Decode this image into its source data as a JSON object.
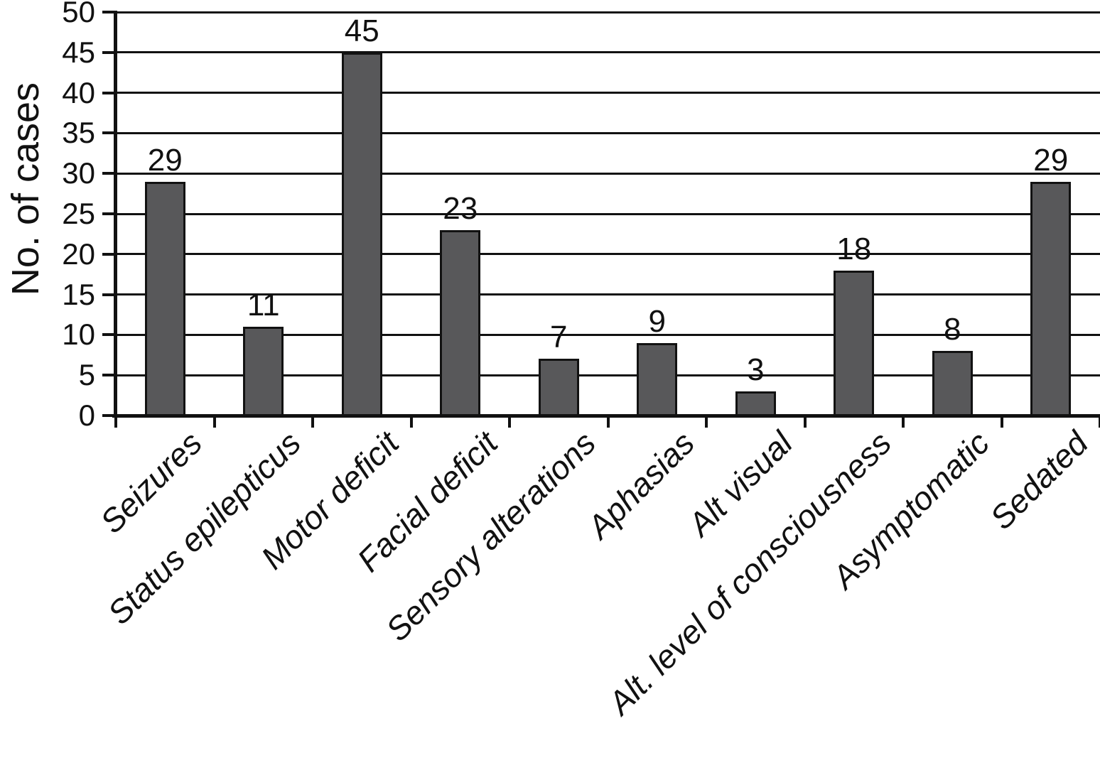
{
  "chart_data": {
    "type": "bar",
    "title": "",
    "xlabel": "",
    "ylabel": "No. of cases",
    "categories": [
      "Seizures",
      "Status epilepticus",
      "Motor deficit",
      "Facial deficit",
      "Sensory alterations",
      "Aphasias",
      "Alt visual",
      "Alt. level of consciousness",
      "Asymptomatic",
      "Sedated"
    ],
    "values": [
      29,
      11,
      45,
      23,
      7,
      9,
      3,
      18,
      8,
      29
    ],
    "value_labels": [
      "29",
      "11",
      "45",
      "23",
      "7",
      "9",
      "3",
      "18",
      "8",
      "29"
    ],
    "ylim": [
      0,
      50
    ],
    "y_ticks": [
      0,
      5,
      10,
      15,
      20,
      25,
      30,
      35,
      40,
      45,
      50
    ],
    "grid": "horizontal",
    "legend": "none",
    "bar_color": "#58585a",
    "line_color": "#111111",
    "background_color": "#ffffff"
  }
}
